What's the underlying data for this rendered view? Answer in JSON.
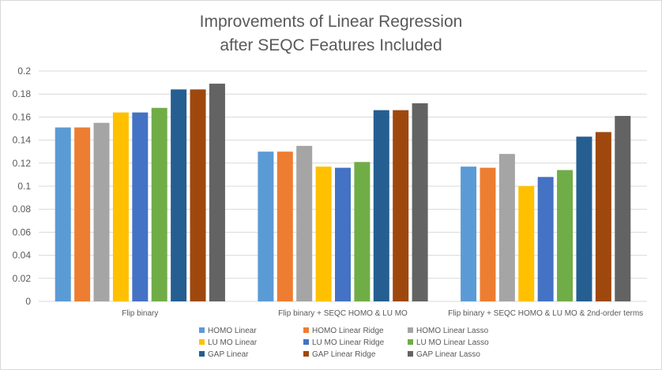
{
  "chart_data": {
    "type": "bar",
    "title_line1": "Improvements of Linear Regression",
    "title_line2": "after SEQC Features Included",
    "xlabel": "",
    "ylabel": "",
    "ylim": [
      0,
      0.2
    ],
    "y_ticks": [
      "0",
      "0.02",
      "0.04",
      "0.06",
      "0.08",
      "0.1",
      "0.12",
      "0.14",
      "0.16",
      "0.18",
      "0.2"
    ],
    "categories": [
      "Flip binary",
      "Flip binary + SEQC HOMO & LU MO",
      "Flip binary + SEQC HOMO & LU MO & 2nd-order terms"
    ],
    "series": [
      {
        "name": "HOMO Linear",
        "color": "#5b9bd5",
        "values": [
          0.151,
          0.13,
          0.117
        ]
      },
      {
        "name": "HOMO Linear Ridge",
        "color": "#ed7d31",
        "values": [
          0.151,
          0.13,
          0.116
        ]
      },
      {
        "name": "HOMO Linear Lasso",
        "color": "#a5a5a5",
        "values": [
          0.155,
          0.135,
          0.128
        ]
      },
      {
        "name": "LU MO Linear",
        "color": "#ffc000",
        "values": [
          0.164,
          0.117,
          0.1
        ]
      },
      {
        "name": "LU MO Linear Ridge",
        "color": "#4472c4",
        "values": [
          0.164,
          0.116,
          0.108
        ]
      },
      {
        "name": "LU MO Linear Lasso",
        "color": "#70ad47",
        "values": [
          0.168,
          0.121,
          0.114
        ]
      },
      {
        "name": "GAP Linear",
        "color": "#255e91",
        "values": [
          0.184,
          0.166,
          0.143
        ]
      },
      {
        "name": "GAP Linear Ridge",
        "color": "#9e480e",
        "values": [
          0.184,
          0.166,
          0.147
        ]
      },
      {
        "name": "GAP Linear Lasso",
        "color": "#636363",
        "values": [
          0.189,
          0.172,
          0.161
        ]
      }
    ],
    "grid": true,
    "legend_position": "bottom"
  }
}
